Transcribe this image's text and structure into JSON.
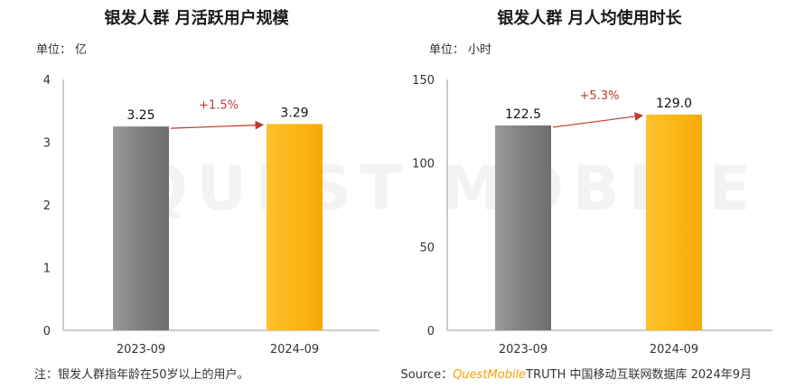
{
  "watermark": "QUEST MOBILE",
  "colors": {
    "bar_2023": "#808080",
    "bar_2024": "#fbb718",
    "growth": "#c0392b"
  },
  "chart_data": [
    {
      "type": "bar",
      "title": "银发人群 月活跃用户规模",
      "unit_label": "单位：",
      "unit": "亿",
      "categories": [
        "2023-09",
        "2024-09"
      ],
      "values": [
        3.25,
        3.29
      ],
      "data_labels": [
        "3.25",
        "3.29"
      ],
      "ylim": [
        0,
        4
      ],
      "yticks": [
        "0",
        "1",
        "2",
        "3",
        "4"
      ],
      "growth_label": "+1.5%",
      "grid": false
    },
    {
      "type": "bar",
      "title": "银发人群 月人均使用时长",
      "unit_label": "单位：",
      "unit": "小时",
      "categories": [
        "2023-09",
        "2024-09"
      ],
      "values": [
        122.5,
        129.0
      ],
      "data_labels": [
        "122.5",
        "129.0"
      ],
      "ylim": [
        0,
        150
      ],
      "yticks": [
        "0",
        "50",
        "100",
        "150"
      ],
      "growth_label": "+5.3%",
      "grid": false
    }
  ],
  "footer": {
    "note": "注：银发人群指年龄在50岁以上的用户。",
    "source_label": "Source：",
    "brand": "QuestMobile",
    "source_text": "TRUTH 中国移动互联网数据库 2024年9月"
  }
}
